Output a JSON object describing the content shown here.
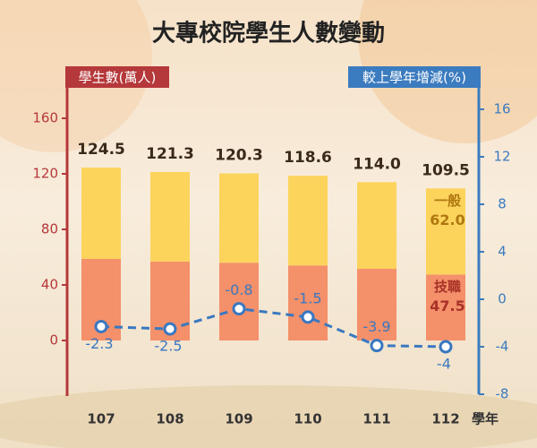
{
  "chart_data": {
    "type": "bar_line",
    "title": "大專校院學生人數變動",
    "y_label": "學生數(萬人)",
    "y2_label": "較上學年增減(%)",
    "x_label": "學年",
    "categories": [
      "107",
      "108",
      "109",
      "110",
      "111",
      "112"
    ],
    "series": [
      {
        "name": "技職",
        "type": "bar",
        "color": "#f4906a",
        "values": [
          58.7,
          56.8,
          56.0,
          54.0,
          51.6,
          47.5
        ],
        "value_labels": [
          null,
          null,
          null,
          null,
          null,
          "47.5"
        ]
      },
      {
        "name": "一般",
        "type": "bar",
        "color": "#fcd45c",
        "values": [
          65.8,
          64.5,
          64.3,
          64.6,
          62.4,
          62.0
        ],
        "value_labels": [
          null,
          null,
          null,
          null,
          null,
          "62.0"
        ]
      },
      {
        "name": "較上學年增減",
        "type": "line",
        "axis": "y2",
        "color": "#3a78c0",
        "values": [
          -2.3,
          -2.5,
          -0.8,
          -1.5,
          -3.9,
          -4.0
        ]
      }
    ],
    "total_labels": [
      "124.5",
      "121.3",
      "120.3",
      "118.6",
      "114.0",
      "109.5"
    ],
    "ylim": [
      -40,
      160
    ],
    "yticks": [
      0,
      40,
      80,
      120,
      160
    ],
    "y2lim": [
      -8,
      16
    ],
    "y2ticks": [
      -8,
      -4,
      0,
      4,
      8,
      12,
      16
    ],
    "y_axis_color": "#b5383a",
    "y2_axis_color": "#3b7bbf"
  }
}
